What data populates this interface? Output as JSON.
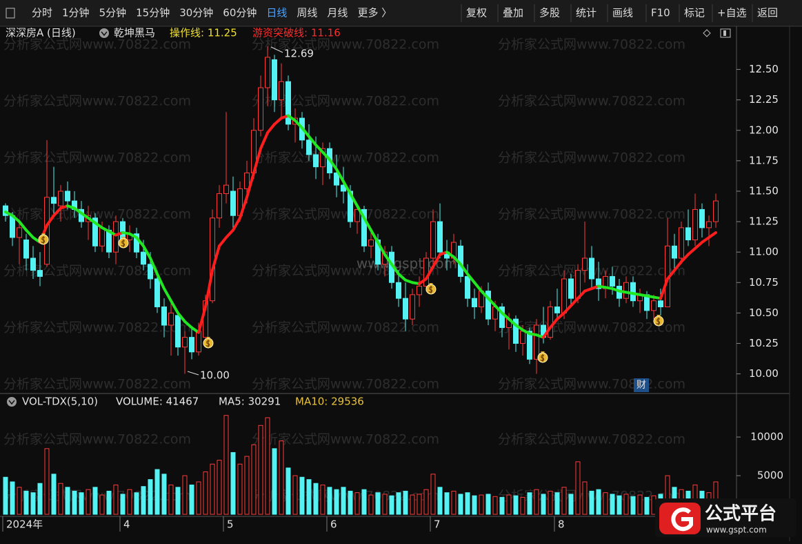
{
  "toolbar": {
    "left": [
      "分时",
      "1分钟",
      "5分钟",
      "15分钟",
      "30分钟",
      "60分钟",
      "日线",
      "周线",
      "月线",
      "更多 〉"
    ],
    "right": [
      "复权",
      "叠加",
      "多股",
      "统计",
      "画线",
      "F10",
      "标记",
      "+自选",
      "返回"
    ]
  },
  "watermark": "分析家公式网www.70822.com",
  "center_watermark": "www.gspt.com",
  "logo": {
    "name": "公式平台",
    "url": "www.gspt.com"
  },
  "chart_data": [
    {
      "type": "candlestick",
      "title": "深深房A (日线)",
      "indicator": "乾坤黑马",
      "legend": [
        {
          "text": "操作线: 11.25",
          "color": "#f0e030"
        },
        {
          "text": "游资突破线: 11.16",
          "color": "#ff2b2b"
        }
      ],
      "up_color": "#ff3b3b",
      "down_color": "#54f2f2",
      "ylim": [
        9.85,
        12.73
      ],
      "yticks": [
        {
          "value": 10,
          "label": "10.00"
        },
        {
          "value": 10.25,
          "label": "10.25"
        },
        {
          "value": 10.5,
          "label": "10.50"
        },
        {
          "value": 10.75,
          "label": "10.75"
        },
        {
          "value": 11,
          "label": "11.00"
        },
        {
          "value": 11.25,
          "label": "11.25"
        },
        {
          "value": 11.5,
          "label": "11.50"
        },
        {
          "value": 11.75,
          "label": "11.75"
        },
        {
          "value": 12,
          "label": "12.00"
        },
        {
          "value": 12.25,
          "label": "12.25"
        },
        {
          "value": 12.5,
          "label": "12.50"
        }
      ],
      "annotations": [
        {
          "value": 12.69,
          "label": "12.69"
        },
        {
          "value": 10,
          "label": "10.00"
        },
        {
          "label": "财"
        }
      ],
      "ohlc": [
        [
          11.38,
          11.4,
          11.25,
          11.3
        ],
        [
          11.3,
          11.33,
          11.05,
          11.12
        ],
        [
          11.12,
          11.25,
          10.9,
          11.2
        ],
        [
          11.1,
          11.15,
          10.85,
          10.95
        ],
        [
          10.95,
          11.05,
          10.78,
          10.85
        ],
        [
          10.85,
          11.0,
          10.72,
          10.8
        ],
        [
          10.9,
          11.92,
          10.88,
          11.45
        ],
        [
          11.45,
          11.7,
          11.3,
          11.4
        ],
        [
          11.38,
          11.55,
          11.25,
          11.5
        ],
        [
          11.5,
          11.58,
          11.35,
          11.42
        ],
        [
          11.42,
          11.5,
          11.28,
          11.35
        ],
        [
          11.35,
          11.42,
          11.2,
          11.25
        ],
        [
          11.25,
          11.38,
          11.1,
          11.3
        ],
        [
          11.28,
          11.32,
          11.0,
          11.05
        ],
        [
          11.05,
          11.25,
          11.0,
          11.2
        ],
        [
          11.18,
          11.22,
          10.95,
          11.0
        ],
        [
          11.0,
          11.3,
          10.9,
          11.25
        ],
        [
          11.25,
          11.28,
          11.05,
          11.1
        ],
        [
          11.1,
          11.22,
          11.0,
          11.15
        ],
        [
          11.15,
          11.2,
          10.95,
          11.0
        ],
        [
          11.0,
          11.1,
          10.85,
          10.9
        ],
        [
          10.9,
          11.0,
          10.7,
          10.78
        ],
        [
          10.78,
          10.85,
          10.5,
          10.55
        ],
        [
          10.55,
          10.62,
          10.3,
          10.4
        ],
        [
          10.4,
          10.58,
          10.15,
          10.5
        ],
        [
          10.48,
          10.52,
          10.15,
          10.22
        ],
        [
          10.22,
          10.35,
          10.0,
          10.3
        ],
        [
          10.3,
          10.38,
          10.12,
          10.18
        ],
        [
          10.18,
          10.42,
          10.15,
          10.35
        ],
        [
          10.3,
          10.65,
          10.28,
          10.6
        ],
        [
          10.6,
          11.35,
          10.58,
          11.28
        ],
        [
          11.28,
          11.55,
          11.2,
          11.48
        ],
        [
          11.48,
          12.15,
          11.4,
          11.55
        ],
        [
          11.5,
          11.62,
          11.2,
          11.3
        ],
        [
          11.3,
          11.58,
          11.25,
          11.52
        ],
        [
          11.52,
          11.75,
          11.4,
          11.65
        ],
        [
          11.65,
          12.1,
          11.6,
          12.0
        ],
        [
          12.0,
          12.45,
          11.95,
          12.35
        ],
        [
          12.35,
          12.69,
          12.2,
          12.6
        ],
        [
          12.58,
          12.62,
          12.15,
          12.25
        ],
        [
          12.25,
          12.55,
          12.1,
          12.4
        ],
        [
          12.4,
          12.45,
          12.0,
          12.05
        ],
        [
          12.05,
          12.18,
          11.9,
          12.1
        ],
        [
          12.1,
          12.15,
          11.85,
          11.92
        ],
        [
          11.92,
          12.05,
          11.75,
          11.8
        ],
        [
          11.8,
          11.95,
          11.6,
          11.7
        ],
        [
          11.7,
          11.9,
          11.55,
          11.85
        ],
        [
          11.85,
          11.9,
          11.6,
          11.65
        ],
        [
          11.65,
          11.8,
          11.45,
          11.55
        ],
        [
          11.55,
          11.7,
          11.4,
          11.5
        ],
        [
          11.5,
          11.55,
          11.2,
          11.25
        ],
        [
          11.25,
          11.4,
          11.15,
          11.35
        ],
        [
          11.35,
          11.38,
          11.0,
          11.05
        ],
        [
          11.05,
          11.2,
          10.95,
          11.1
        ],
        [
          11.1,
          11.15,
          10.85,
          10.9
        ],
        [
          10.9,
          11.05,
          10.8,
          11.0
        ],
        [
          11.0,
          11.05,
          10.7,
          10.75
        ],
        [
          10.75,
          10.85,
          10.55,
          10.62
        ],
        [
          10.62,
          10.75,
          10.35,
          10.45
        ],
        [
          10.45,
          10.7,
          10.4,
          10.65
        ],
        [
          10.65,
          10.8,
          10.55,
          10.72
        ],
        [
          10.72,
          11.0,
          10.68,
          10.95
        ],
        [
          10.95,
          11.35,
          10.9,
          11.25
        ],
        [
          11.25,
          11.4,
          10.95,
          11.0
        ],
        [
          11.0,
          11.1,
          10.85,
          10.95
        ],
        [
          10.95,
          11.15,
          10.9,
          11.08
        ],
        [
          11.05,
          11.1,
          10.75,
          10.8
        ],
        [
          10.8,
          10.9,
          10.55,
          10.62
        ],
        [
          10.62,
          10.7,
          10.45,
          10.55
        ],
        [
          10.55,
          10.72,
          10.5,
          10.68
        ],
        [
          10.68,
          10.75,
          10.4,
          10.45
        ],
        [
          10.45,
          10.6,
          10.35,
          10.55
        ],
        [
          10.55,
          10.58,
          10.3,
          10.38
        ],
        [
          10.38,
          10.5,
          10.2,
          10.45
        ],
        [
          10.45,
          10.48,
          10.18,
          10.25
        ],
        [
          10.25,
          10.4,
          10.15,
          10.35
        ],
        [
          10.35,
          10.38,
          10.08,
          10.12
        ],
        [
          10.12,
          10.45,
          10.0,
          10.4
        ],
        [
          10.4,
          10.55,
          10.25,
          10.3
        ],
        [
          10.3,
          10.6,
          10.28,
          10.55
        ],
        [
          10.55,
          10.7,
          10.45,
          10.5
        ],
        [
          10.5,
          10.85,
          10.45,
          10.78
        ],
        [
          10.78,
          10.82,
          10.55,
          10.62
        ],
        [
          10.62,
          10.9,
          10.58,
          10.85
        ],
        [
          10.85,
          11.25,
          10.75,
          10.95
        ],
        [
          10.95,
          11.05,
          10.7,
          10.78
        ],
        [
          10.78,
          10.92,
          10.6,
          10.7
        ],
        [
          10.7,
          10.85,
          10.62,
          10.8
        ],
        [
          10.8,
          10.88,
          10.65,
          10.72
        ],
        [
          10.72,
          10.78,
          10.55,
          10.62
        ],
        [
          10.62,
          10.8,
          10.58,
          10.75
        ],
        [
          10.75,
          10.8,
          10.55,
          10.6
        ],
        [
          10.6,
          10.7,
          10.5,
          10.65
        ],
        [
          10.65,
          10.68,
          10.45,
          10.52
        ],
        [
          10.52,
          10.65,
          10.45,
          10.6
        ],
        [
          10.6,
          10.7,
          10.48,
          10.55
        ],
        [
          10.55,
          11.28,
          10.55,
          11.05
        ],
        [
          11.05,
          11.15,
          10.85,
          10.95
        ],
        [
          10.95,
          11.25,
          10.9,
          11.2
        ],
        [
          11.2,
          11.35,
          11.05,
          11.1
        ],
        [
          11.1,
          11.48,
          11.05,
          11.35
        ],
        [
          11.35,
          11.4,
          11.12,
          11.2
        ],
        [
          11.2,
          11.3,
          11.05,
          11.25
        ],
        [
          11.25,
          11.48,
          11.2,
          11.42
        ]
      ],
      "line": {
        "rise_color": "#ff1e1e",
        "fall_color": "#22e622",
        "values": [
          11.33,
          11.3,
          11.25,
          11.18,
          11.12,
          11.08,
          11.22,
          11.3,
          11.36,
          11.38,
          11.36,
          11.32,
          11.28,
          11.24,
          11.2,
          11.17,
          11.14,
          11.16,
          11.15,
          11.12,
          11.05,
          10.95,
          10.82,
          10.7,
          10.6,
          10.5,
          10.43,
          10.38,
          10.34,
          10.55,
          10.85,
          11.05,
          11.12,
          11.18,
          11.28,
          11.45,
          11.65,
          11.85,
          11.98,
          12.05,
          12.1,
          12.12,
          12.08,
          12.02,
          11.95,
          11.88,
          11.82,
          11.76,
          11.68,
          11.58,
          11.48,
          11.38,
          11.28,
          11.18,
          11.08,
          10.98,
          10.9,
          10.82,
          10.77,
          10.75,
          10.74,
          10.78,
          10.88,
          10.98,
          11.0,
          10.96,
          10.9,
          10.82,
          10.75,
          10.68,
          10.62,
          10.56,
          10.5,
          10.45,
          10.4,
          10.36,
          10.33,
          10.32,
          10.3,
          10.38,
          10.45,
          10.5,
          10.56,
          10.62,
          10.68,
          10.7,
          10.72,
          10.71,
          10.7,
          10.68,
          10.67,
          10.66,
          10.65,
          10.64,
          10.63,
          10.62,
          10.78,
          10.85,
          10.92,
          10.98,
          11.03,
          11.08,
          11.12,
          11.16
        ]
      }
    },
    {
      "type": "bar",
      "title": "VOL-TDX(5,10)",
      "legend": [
        {
          "text": "VOLUME: 41467",
          "color": "#e6e6e6"
        },
        {
          "text": "MA5: 30291",
          "color": "#e6e6e6"
        },
        {
          "text": "MA10: 29536",
          "color": "#e8c23a"
        }
      ],
      "ylim": [
        0,
        13400
      ],
      "yticks": [
        5000,
        10000
      ],
      "categories": [
        "2024年",
        null,
        null,
        null,
        null,
        null,
        null,
        null,
        null,
        null,
        null,
        null,
        null,
        null,
        null,
        null,
        null,
        "4",
        null,
        null,
        null,
        null,
        null,
        null,
        null,
        null,
        null,
        null,
        null,
        null,
        null,
        null,
        "5",
        null,
        null,
        null,
        null,
        null,
        null,
        null,
        null,
        null,
        null,
        null,
        null,
        null,
        null,
        "6",
        null,
        null,
        null,
        null,
        null,
        null,
        null,
        null,
        null,
        null,
        null,
        null,
        null,
        null,
        "7",
        null,
        null,
        null,
        null,
        null,
        null,
        null,
        null,
        null,
        null,
        null,
        null,
        null,
        null,
        null,
        null,
        null,
        "8",
        null,
        null,
        null,
        null,
        null,
        null,
        null,
        null,
        null,
        null,
        null,
        null,
        null,
        null,
        null,
        null,
        null,
        null,
        null,
        null,
        null,
        null,
        null
      ],
      "values": [
        4800,
        4200,
        3500,
        3000,
        2800,
        4000,
        8500,
        5200,
        4000,
        3500,
        3000,
        2800,
        3200,
        3500,
        2500,
        3000,
        3800,
        2600,
        3200,
        2800,
        3600,
        4500,
        5800,
        5200,
        3800,
        3500,
        5000,
        3800,
        4200,
        5500,
        6500,
        7000,
        12800,
        8000,
        6500,
        7500,
        9000,
        11500,
        12500,
        8500,
        9500,
        6000,
        5000,
        4800,
        4500,
        4000,
        3800,
        3500,
        3200,
        3500,
        3000,
        2800,
        3200,
        2500,
        2800,
        2600,
        2400,
        2800,
        3000,
        2500,
        2600,
        3200,
        5200,
        3500,
        2800,
        3000,
        2600,
        2800,
        2400,
        2500,
        2600,
        2300,
        2200,
        2500,
        2400,
        2200,
        2800,
        3200,
        2600,
        3000,
        2800,
        3500,
        2600,
        6800,
        4200,
        3000,
        3200,
        2800,
        2600,
        2400,
        2600,
        2300,
        2500,
        2200,
        2400,
        2600,
        5000,
        3500,
        3200,
        3000,
        3800,
        3000,
        2800,
        4200
      ]
    }
  ]
}
